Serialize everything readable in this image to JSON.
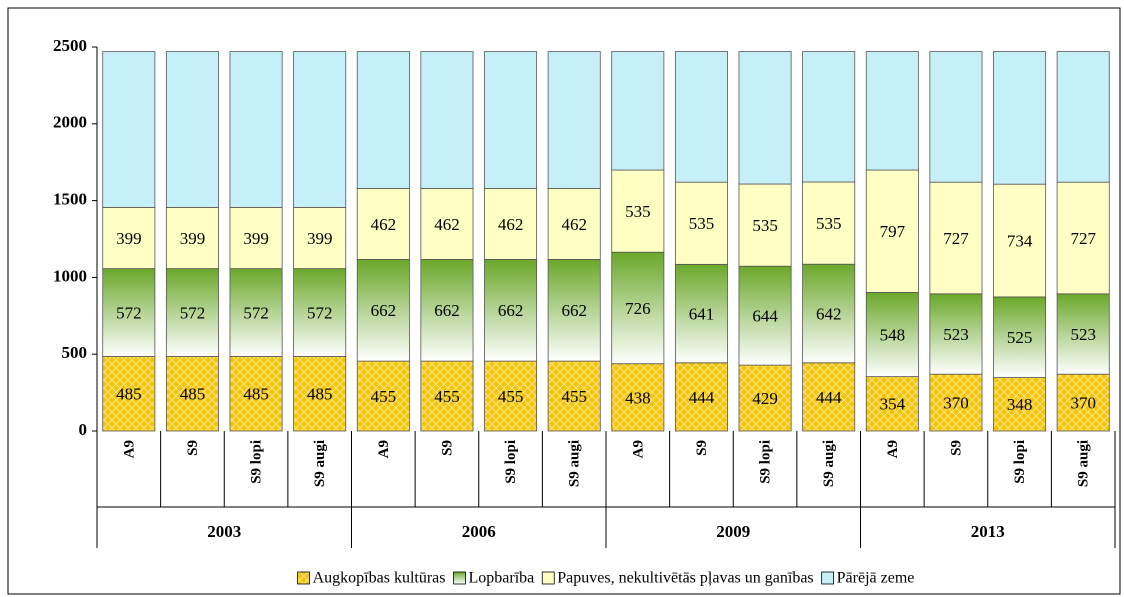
{
  "chart_data": {
    "type": "stacked_bar",
    "groups": [
      "2003",
      "2006",
      "2009",
      "2013"
    ],
    "categories": [
      "A9",
      "S9",
      "S9 lopi",
      "S9 augi",
      "A9",
      "S9",
      "S9 lopi",
      "S9 augi",
      "A9",
      "S9",
      "S9 lopi",
      "S9 augi",
      "A9",
      "S9",
      "S9 lopi",
      "S9 augi"
    ],
    "series": [
      {
        "name": "Augkopības kultūras",
        "color": "#f2c40c",
        "values": [
          485,
          485,
          485,
          485,
          455,
          455,
          455,
          455,
          438,
          444,
          429,
          444,
          354,
          370,
          348,
          370
        ]
      },
      {
        "name": "Lopbarība",
        "color": "#6aa82a",
        "gradient": true,
        "values": [
          572,
          572,
          572,
          572,
          662,
          662,
          662,
          662,
          726,
          641,
          644,
          642,
          548,
          523,
          525,
          523
        ]
      },
      {
        "name": "Papuves, nekultivētās pļavas un ganības",
        "color": "#ffffc4",
        "values": [
          399,
          399,
          399,
          399,
          462,
          462,
          462,
          462,
          535,
          535,
          535,
          535,
          797,
          727,
          734,
          727
        ]
      },
      {
        "name": "Pārējā zeme",
        "color": "#c6f0f8",
        "labels": false,
        "values": [
          1014,
          1014,
          1014,
          1014,
          891,
          891,
          891,
          891,
          771,
          850,
          862,
          849,
          771,
          850,
          863,
          850
        ]
      }
    ],
    "ylim": [
      0,
      2500
    ],
    "yticks": [
      0,
      500,
      1000,
      1500,
      2000,
      2500
    ],
    "legend": "bottom"
  }
}
